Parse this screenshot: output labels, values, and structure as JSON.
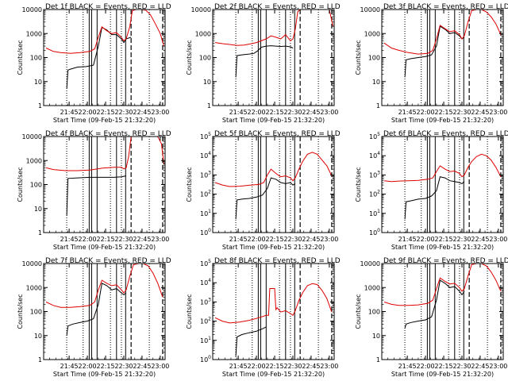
{
  "colors": {
    "events": "#000000",
    "lld": "#e00000",
    "axis": "#000000"
  },
  "common": {
    "xlabel": "Start Time (09-Feb-15 21:32:20)",
    "ylabel": "Counts/sec",
    "x_ticks": [
      "21:45",
      "22:00",
      "22:15",
      "22:30",
      "22:45",
      "23:00"
    ],
    "x_range_min": [
      -8,
      92
    ],
    "x_tick_min": [
      13,
      28,
      43,
      58,
      73,
      88
    ],
    "solid_lines_min": [
      29.5,
      31.5,
      36,
      52,
      59.5
    ],
    "dashed_lines_min": [
      64,
      90
    ],
    "dotted_lines_min": [
      11,
      24.5,
      47,
      56,
      79
    ]
  },
  "chart_data": [
    {
      "type": "line",
      "title": "Det 1f BLACK = Events, RED = LLD",
      "scale": "log",
      "ylim": [
        1,
        10000
      ],
      "y_ticks": [
        "1",
        "10",
        "100",
        "1000",
        "10000"
      ],
      "series": [
        {
          "name": "Events",
          "x": [
            11,
            12,
            14,
            20,
            27,
            33,
            37,
            40,
            44,
            48,
            52,
            56,
            58,
            60,
            64
          ],
          "y": [
            5,
            30,
            33,
            40,
            42,
            48,
            300,
            1800,
            1400,
            900,
            900,
            600,
            420,
            600,
            700
          ]
        },
        {
          "name": "LLD",
          "x": [
            -6,
            0,
            6,
            14,
            22,
            30,
            34,
            37,
            40,
            44,
            48,
            52,
            56,
            58,
            60,
            63,
            65,
            68,
            72,
            76,
            80,
            84,
            88,
            91
          ],
          "y": [
            250,
            180,
            160,
            150,
            160,
            180,
            230,
            700,
            1900,
            1300,
            1000,
            1100,
            700,
            500,
            600,
            2000,
            9000,
            10000,
            10000,
            9500,
            6000,
            2500,
            1000,
            300
          ]
        }
      ]
    },
    {
      "type": "line",
      "title": "Det 2f BLACK = Events, RED = LLD",
      "scale": "log",
      "ylim": [
        1,
        10000
      ],
      "y_ticks": [
        "1",
        "10",
        "100",
        "1000",
        "10000"
      ],
      "series": [
        {
          "name": "Events",
          "x": [
            11,
            12,
            16,
            22,
            26,
            29,
            32,
            36,
            40,
            44,
            48,
            52,
            56,
            58
          ],
          "y": [
            15,
            120,
            130,
            140,
            150,
            190,
            270,
            300,
            310,
            300,
            290,
            300,
            280,
            250
          ]
        },
        {
          "name": "LLD",
          "x": [
            -6,
            0,
            6,
            12,
            18,
            24,
            28,
            32,
            36,
            40,
            44,
            48,
            52,
            56,
            58,
            60,
            62,
            64,
            70,
            76,
            82,
            88,
            91
          ],
          "y": [
            420,
            380,
            350,
            320,
            330,
            380,
            420,
            500,
            600,
            800,
            700,
            600,
            900,
            500,
            600,
            1500,
            8000,
            10000,
            10000,
            10000,
            10000,
            10000,
            2000
          ]
        }
      ]
    },
    {
      "type": "line",
      "title": "Det 3f BLACK = Events, RED = LLD",
      "scale": "log",
      "ylim": [
        1,
        10000
      ],
      "y_ticks": [
        "1",
        "10",
        "100",
        "1000",
        "10000"
      ],
      "series": [
        {
          "name": "Events",
          "x": [
            11,
            12,
            16,
            22,
            28,
            33,
            37,
            40,
            44,
            48,
            52,
            56,
            58,
            60
          ],
          "y": [
            15,
            80,
            90,
            100,
            110,
            130,
            300,
            2000,
            1500,
            1000,
            1100,
            800,
            600,
            700
          ]
        },
        {
          "name": "LLD",
          "x": [
            -6,
            0,
            6,
            14,
            22,
            30,
            34,
            37,
            40,
            44,
            48,
            52,
            56,
            58,
            60,
            63,
            66,
            70,
            74,
            78,
            82,
            86,
            90
          ],
          "y": [
            400,
            250,
            200,
            160,
            140,
            150,
            200,
            600,
            2200,
            1600,
            1200,
            1300,
            900,
            600,
            800,
            3000,
            9000,
            10000,
            10000,
            8000,
            5000,
            2500,
            900
          ]
        }
      ]
    },
    {
      "type": "line",
      "title": "Det 4f BLACK = Events, RED = LLD",
      "scale": "log",
      "ylim": [
        1,
        10000
      ],
      "y_ticks": [
        "1",
        "10",
        "100",
        "1000",
        "10000"
      ],
      "series": [
        {
          "name": "Events",
          "x": [
            11,
            12,
            20,
            30,
            40,
            50,
            56,
            58,
            60
          ],
          "y": [
            5,
            180,
            190,
            200,
            200,
            200,
            210,
            220,
            230
          ]
        },
        {
          "name": "LLD",
          "x": [
            -6,
            0,
            10,
            20,
            30,
            40,
            50,
            56,
            58,
            60,
            62,
            64,
            70,
            80,
            86,
            89,
            91
          ],
          "y": [
            500,
            420,
            380,
            380,
            400,
            480,
            520,
            520,
            450,
            500,
            1500,
            10000,
            10000,
            10000,
            10000,
            5000,
            700
          ]
        }
      ]
    },
    {
      "type": "line",
      "title": "Det 5f BLACK = Events, RED = LLD",
      "scale": "log",
      "ylim": [
        1,
        100000
      ],
      "y_ticks": [
        "10^0",
        "10^1",
        "10^2",
        "10^3",
        "10^4",
        "10^5"
      ],
      "series": [
        {
          "name": "Events",
          "x": [
            11,
            12,
            16,
            22,
            28,
            33,
            37,
            40,
            44,
            48,
            52,
            56,
            58,
            60
          ],
          "y": [
            5,
            50,
            55,
            60,
            70,
            90,
            200,
            700,
            600,
            400,
            350,
            400,
            300,
            350
          ]
        },
        {
          "name": "LLD",
          "x": [
            -6,
            0,
            6,
            14,
            22,
            30,
            34,
            37,
            40,
            44,
            48,
            52,
            56,
            58,
            60,
            63,
            66,
            70,
            74,
            78,
            82,
            86,
            90
          ],
          "y": [
            400,
            300,
            250,
            260,
            290,
            320,
            400,
            1000,
            2000,
            1200,
            800,
            900,
            700,
            500,
            700,
            2000,
            5000,
            12000,
            15000,
            12000,
            6000,
            3000,
            900
          ]
        }
      ]
    },
    {
      "type": "line",
      "title": "Det 6f BLACK = Events, RED = LLD",
      "scale": "log",
      "ylim": [
        1,
        100000
      ],
      "y_ticks": [
        "10^0",
        "10^1",
        "10^2",
        "10^3",
        "10^4",
        "10^5"
      ],
      "series": [
        {
          "name": "Events",
          "x": [
            11,
            12,
            16,
            22,
            28,
            33,
            37,
            40,
            44,
            48,
            52,
            56,
            58,
            60
          ],
          "y": [
            5,
            40,
            45,
            55,
            60,
            80,
            150,
            800,
            700,
            500,
            450,
            400,
            350,
            450
          ]
        },
        {
          "name": "LLD",
          "x": [
            -6,
            0,
            6,
            14,
            22,
            30,
            34,
            37,
            40,
            44,
            48,
            52,
            56,
            58,
            60,
            63,
            66,
            70,
            74,
            78,
            82,
            86,
            90
          ],
          "y": [
            500,
            450,
            480,
            500,
            520,
            600,
            700,
            1500,
            3000,
            2000,
            1500,
            1600,
            1200,
            800,
            1000,
            2500,
            5000,
            9000,
            12000,
            10000,
            6000,
            2500,
            800
          ]
        }
      ]
    },
    {
      "type": "line",
      "title": "Det 7f BLACK = Events, RED = LLD",
      "scale": "log",
      "ylim": [
        1,
        10000
      ],
      "y_ticks": [
        "1",
        "10",
        "100",
        "1000",
        "10000"
      ],
      "series": [
        {
          "name": "Events",
          "x": [
            11,
            12,
            16,
            22,
            28,
            33,
            37,
            40,
            44,
            48,
            52,
            56,
            58,
            60
          ],
          "y": [
            10,
            25,
            30,
            35,
            40,
            50,
            200,
            1500,
            1200,
            800,
            900,
            600,
            500,
            600
          ]
        },
        {
          "name": "LLD",
          "x": [
            -6,
            0,
            6,
            14,
            22,
            30,
            34,
            37,
            40,
            44,
            48,
            52,
            56,
            58,
            60,
            63,
            66,
            70,
            74,
            78,
            82,
            86,
            90
          ],
          "y": [
            250,
            180,
            150,
            150,
            160,
            180,
            250,
            800,
            2000,
            1500,
            1200,
            1300,
            800,
            600,
            800,
            3000,
            9000,
            10000,
            10000,
            8000,
            4000,
            1500,
            400
          ]
        }
      ]
    },
    {
      "type": "line",
      "title": "Det 8f BLACK = Events, RED = LLD",
      "scale": "log",
      "ylim": [
        1,
        100000
      ],
      "y_ticks": [
        "10^0",
        "10^1",
        "10^2",
        "10^3",
        "10^4",
        "10^5"
      ],
      "series": [
        {
          "name": "Events",
          "x": [
            11,
            12,
            16,
            22,
            28,
            33,
            36
          ],
          "y": [
            1.5,
            15,
            20,
            25,
            30,
            40,
            50
          ]
        },
        {
          "name": "LLD",
          "x": [
            -6,
            0,
            6,
            14,
            22,
            30,
            36,
            38,
            39,
            43,
            44,
            45,
            48,
            52,
            56,
            58,
            60,
            63,
            66,
            70,
            74,
            78,
            82,
            86,
            90
          ],
          "y": [
            150,
            100,
            80,
            90,
            110,
            150,
            200,
            200,
            5000,
            5000,
            400,
            500,
            300,
            350,
            250,
            200,
            350,
            1200,
            3000,
            7000,
            9000,
            8000,
            4000,
            1500,
            300
          ]
        }
      ]
    },
    {
      "type": "line",
      "title": "Det 9f BLACK = Events, RED = LLD",
      "scale": "log",
      "ylim": [
        1,
        10000
      ],
      "y_ticks": [
        "1",
        "10",
        "100",
        "1000",
        "10000"
      ],
      "series": [
        {
          "name": "Events",
          "x": [
            11,
            12,
            16,
            22,
            28,
            33,
            37,
            40,
            44,
            48,
            52,
            56,
            58,
            60
          ],
          "y": [
            20,
            30,
            35,
            40,
            45,
            60,
            300,
            2000,
            1500,
            1000,
            1100,
            700,
            500,
            700
          ]
        },
        {
          "name": "LLD",
          "x": [
            -6,
            0,
            6,
            14,
            22,
            30,
            34,
            37,
            40,
            44,
            48,
            52,
            56,
            58,
            60,
            63,
            66,
            70,
            74,
            78,
            82,
            86,
            90
          ],
          "y": [
            250,
            200,
            180,
            180,
            190,
            220,
            300,
            900,
            2500,
            1800,
            1400,
            1500,
            1000,
            700,
            900,
            3000,
            9000,
            10000,
            10000,
            8000,
            4500,
            2000,
            700
          ]
        }
      ]
    }
  ]
}
